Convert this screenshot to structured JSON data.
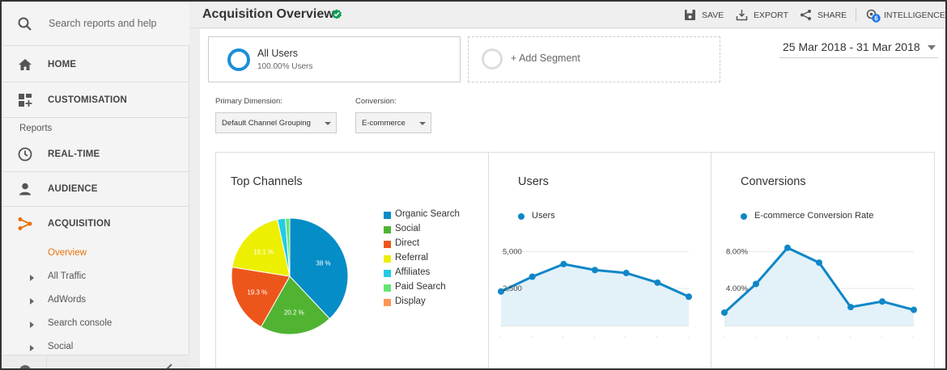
{
  "sidebar": {
    "search_placeholder": "Search reports and help",
    "nav": [
      {
        "label": "HOME",
        "icon": "home-icon"
      },
      {
        "label": "CUSTOMISATION",
        "icon": "dashboard-icon"
      }
    ],
    "reports_label": "Reports",
    "reports": [
      {
        "label": "REAL-TIME",
        "icon": "clock-icon"
      },
      {
        "label": "AUDIENCE",
        "icon": "person-icon"
      },
      {
        "label": "ACQUISITION",
        "icon": "acquisition-icon"
      }
    ],
    "sub_items": [
      {
        "label": "Overview",
        "active": true
      },
      {
        "label": "All Traffic"
      },
      {
        "label": "AdWords"
      },
      {
        "label": "Search console"
      },
      {
        "label": "Social"
      }
    ]
  },
  "header": {
    "title": "Acquisition Overview",
    "actions": [
      {
        "label": "SAVE",
        "icon": "save-icon"
      },
      {
        "label": "EXPORT",
        "icon": "export-icon"
      },
      {
        "label": "SHARE",
        "icon": "share-icon"
      },
      {
        "label": "INTELLIGENCE",
        "icon": "intelligence-icon",
        "badge": "6"
      }
    ]
  },
  "segments": {
    "active_name": "All Users",
    "active_sub": "100.00% Users",
    "add_label": "+ Add Segment"
  },
  "date_range": "25 Mar 2018 - 31 Mar 2018",
  "filters": {
    "primary_dimension_label": "Primary Dimension:",
    "primary_dimension_value": "Default Channel Grouping",
    "conversion_label": "Conversion:",
    "conversion_value": "E-commerce"
  },
  "colors": {
    "accent": "#e8710a",
    "line": "#0f87c7",
    "area": "#e3f1f9"
  },
  "panels": {
    "top_channels_title": "Top Channels",
    "users_title": "Users",
    "conversions_title": "Conversions"
  },
  "chart_data": [
    {
      "type": "pie",
      "title": "Top Channels",
      "legend_placement": "right",
      "slices": [
        {
          "name": "Organic Search",
          "value": 38,
          "color": "#058dc7",
          "label": "38 %"
        },
        {
          "name": "Social",
          "value": 20.2,
          "color": "#50b432",
          "label": "20.2 %"
        },
        {
          "name": "Direct",
          "value": 19.3,
          "color": "#ed561b",
          "label": "19.3 %"
        },
        {
          "name": "Referral",
          "value": 19.1,
          "color": "#edef00",
          "label": "19.1 %"
        },
        {
          "name": "Affiliates",
          "value": 2.2,
          "color": "#24cbe5",
          "label": ""
        },
        {
          "name": "Paid Search",
          "value": 1.2,
          "color": "#64e572",
          "label": ""
        },
        {
          "name": "Display",
          "value": 0,
          "color": "#ff9655",
          "label": ""
        }
      ]
    },
    {
      "type": "area",
      "title": "Users",
      "series": [
        {
          "name": "Users",
          "values": [
            2300,
            3300,
            4150,
            3750,
            3550,
            2900,
            1950
          ]
        }
      ],
      "yticks": [
        "5,000",
        "2,500"
      ],
      "ylim": [
        0,
        6000
      ],
      "grid": true
    },
    {
      "type": "area",
      "title": "Conversions",
      "series": [
        {
          "name": "E-commerce Conversion Rate",
          "values": [
            1.4,
            4.5,
            8.4,
            6.8,
            2.0,
            2.6,
            1.7
          ]
        }
      ],
      "yticks": [
        "8.00%",
        "4.00%"
      ],
      "ylim": [
        0,
        9.6
      ],
      "grid": true
    }
  ]
}
